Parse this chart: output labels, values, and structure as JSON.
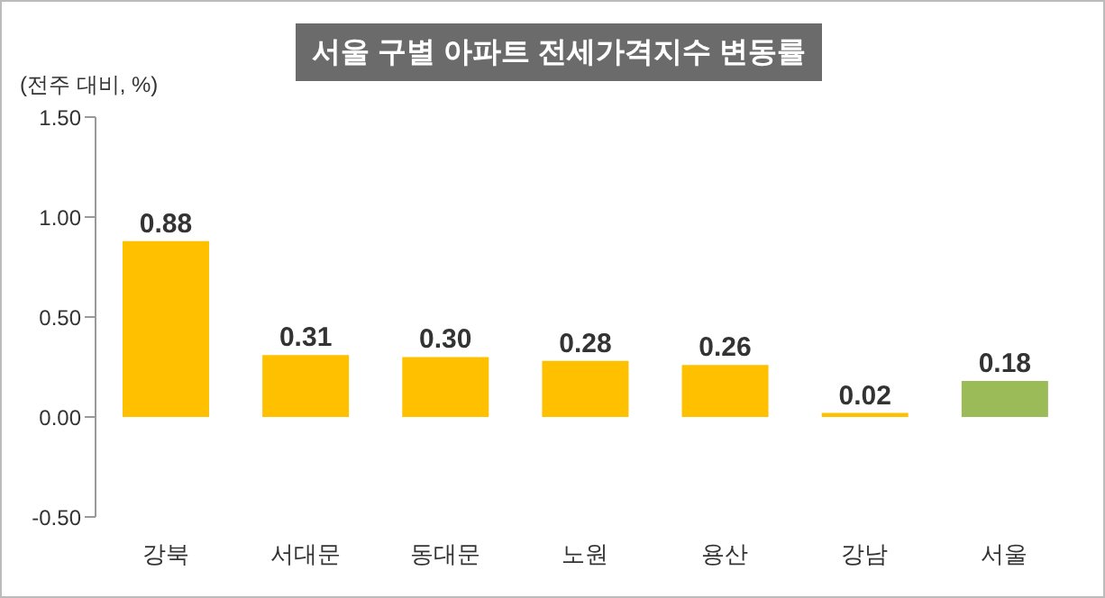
{
  "chart_data": {
    "type": "bar",
    "title": "서울 구별 아파트 전세가격지수 변동률",
    "ylabel": "(전주 대비, %)",
    "categories": [
      "강북",
      "서대문",
      "동대문",
      "노원",
      "용산",
      "강남",
      "서울"
    ],
    "values": [
      0.88,
      0.31,
      0.3,
      0.28,
      0.26,
      0.02,
      0.18
    ],
    "colors": [
      "#ffc000",
      "#ffc000",
      "#ffc000",
      "#ffc000",
      "#ffc000",
      "#ffc000",
      "#9bbb59"
    ],
    "ylim": [
      -0.5,
      1.5
    ],
    "yticks": [
      {
        "value": -0.5,
        "label": "-0.50"
      },
      {
        "value": 0,
        "label": "0.00"
      },
      {
        "value": 0.5,
        "label": "0.50"
      },
      {
        "value": 1,
        "label": "1.00"
      },
      {
        "value": 1.5,
        "label": "1.50"
      }
    ],
    "value_labels": [
      "0.88",
      "0.31",
      "0.30",
      "0.28",
      "0.26",
      "0.02",
      "0.18"
    ],
    "grid": false,
    "legend": false
  }
}
